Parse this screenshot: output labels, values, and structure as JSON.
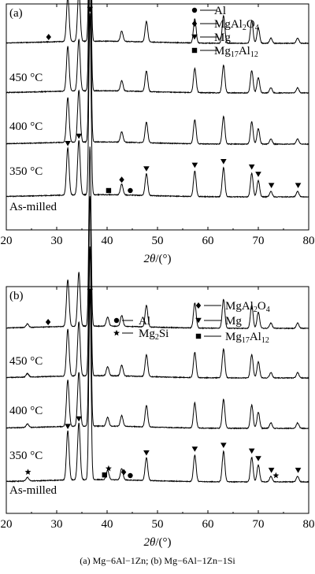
{
  "chart_data": [
    {
      "type": "line",
      "panel_label": "(a)",
      "xlabel_var": "2θ",
      "xlabel_unit": "/(°)",
      "xlim": [
        20,
        80
      ],
      "xticks": [
        20,
        30,
        40,
        50,
        60,
        70,
        80
      ],
      "ylabel": "",
      "grid": false,
      "legend_position": "top-right",
      "legend": [
        {
          "symbol": "circle",
          "name": "Al"
        },
        {
          "symbol": "diamond",
          "name": "MgAl2O4"
        },
        {
          "symbol": "triangle-down",
          "name": "Mg"
        },
        {
          "symbol": "square",
          "name": "Mg17Al12"
        }
      ],
      "peaks": [
        {
          "x": 32.2,
          "h": 0.26
        },
        {
          "x": 34.4,
          "h": 0.3
        },
        {
          "x": 36.6,
          "h": 1.0
        },
        {
          "x": 42.9,
          "h": 0.06
        },
        {
          "x": 47.8,
          "h": 0.12
        },
        {
          "x": 57.4,
          "h": 0.14
        },
        {
          "x": 63.1,
          "h": 0.16
        },
        {
          "x": 68.7,
          "h": 0.13
        },
        {
          "x": 70.0,
          "h": 0.09
        },
        {
          "x": 72.5,
          "h": 0.03
        },
        {
          "x": 77.8,
          "h": 0.03
        }
      ],
      "series": [
        {
          "name": "450 °C",
          "amplitude": 1.0
        },
        {
          "name": "400 °C",
          "amplitude": 0.95
        },
        {
          "name": "350 °C",
          "amplitude": 0.95
        },
        {
          "name": "As-milled",
          "amplitude": 0.95
        }
      ],
      "markers": [
        {
          "series": "450 °C",
          "symbol": "triangle-down",
          "x": [
            32.2,
            34.4,
            36.6,
            47.8,
            57.4,
            63.1,
            68.7,
            70.0,
            72.6,
            77.9
          ]
        },
        {
          "series": "450 °C",
          "symbol": "square",
          "x": [
            40.3
          ]
        },
        {
          "series": "450 °C",
          "symbol": "diamond",
          "x": [
            42.9
          ]
        },
        {
          "series": "450 °C",
          "symbol": "circle",
          "x": [
            44.6
          ]
        },
        {
          "series": "As-milled",
          "symbol": "diamond",
          "x": [
            28.4
          ]
        }
      ]
    },
    {
      "type": "line",
      "panel_label": "(b)",
      "xlabel_var": "2θ",
      "xlabel_unit": "/(°)",
      "xlim": [
        20,
        80
      ],
      "xticks": [
        20,
        30,
        40,
        50,
        60,
        70,
        80
      ],
      "ylabel": "",
      "grid": false,
      "legend_position": "top",
      "legend": [
        {
          "symbol": "circle",
          "name": "Al"
        },
        {
          "symbol": "star",
          "name": "Mg2Si"
        },
        {
          "symbol": "diamond",
          "name": "MgAl2O4"
        },
        {
          "symbol": "triangle-down",
          "name": "Mg"
        },
        {
          "symbol": "square",
          "name": "Mg17Al12"
        }
      ],
      "peaks": [
        {
          "x": 24.2,
          "h": 0.02
        },
        {
          "x": 32.2,
          "h": 0.26
        },
        {
          "x": 34.4,
          "h": 0.3
        },
        {
          "x": 36.6,
          "h": 1.0
        },
        {
          "x": 40.1,
          "h": 0.05
        },
        {
          "x": 42.9,
          "h": 0.06
        },
        {
          "x": 47.8,
          "h": 0.12
        },
        {
          "x": 57.4,
          "h": 0.14
        },
        {
          "x": 63.1,
          "h": 0.16
        },
        {
          "x": 68.7,
          "h": 0.13
        },
        {
          "x": 70.0,
          "h": 0.09
        },
        {
          "x": 72.5,
          "h": 0.03
        },
        {
          "x": 77.8,
          "h": 0.03
        }
      ],
      "series": [
        {
          "name": "450 °C",
          "amplitude": 1.0
        },
        {
          "name": "400 °C",
          "amplitude": 0.95
        },
        {
          "name": "350 °C",
          "amplitude": 0.95
        },
        {
          "name": "As-milled",
          "amplitude": 0.95
        }
      ],
      "markers": [
        {
          "series": "450 °C",
          "symbol": "triangle-down",
          "x": [
            32.2,
            34.4,
            36.6,
            47.8,
            57.4,
            63.1,
            68.7,
            70.0,
            72.6,
            77.9
          ]
        },
        {
          "series": "450 °C",
          "symbol": "star",
          "x": [
            24.3,
            40.3,
            73.5
          ]
        },
        {
          "series": "450 °C",
          "symbol": "square",
          "x": [
            39.5
          ]
        },
        {
          "series": "450 °C",
          "symbol": "diamond",
          "x": [
            43.3
          ]
        },
        {
          "series": "450 °C",
          "symbol": "circle",
          "x": [
            44.6
          ]
        },
        {
          "series": "As-milled",
          "symbol": "diamond",
          "x": [
            28.3
          ]
        }
      ]
    }
  ],
  "caption": "(a) Mg−6Al−1Zn; (b) Mg−6Al−1Zn−1Si"
}
